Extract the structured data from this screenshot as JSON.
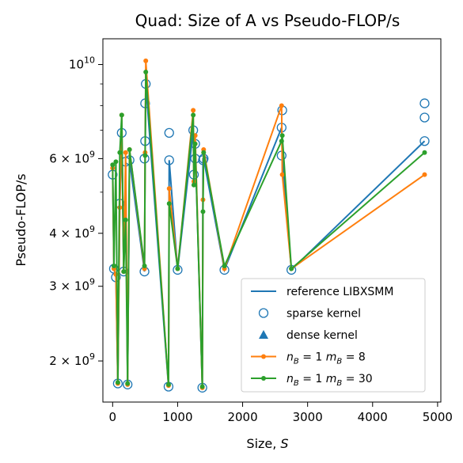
{
  "chart_data": {
    "type": "line",
    "title": "Quad: Size of A vs Pseudo-FLOP/s",
    "xlabel": "Size, S",
    "ylabel": "Pseudo-FLOP/s",
    "xlim": [
      -150,
      5050
    ],
    "ylim": [
      1600000000.0,
      11500000000.0
    ],
    "yscale": "log",
    "grid": false,
    "legend_position": "lower-right",
    "x_ticks": [
      0,
      1000,
      2000,
      3000,
      4000,
      5000
    ],
    "x_tick_labels": [
      "0",
      "1000",
      "2000",
      "3000",
      "4000",
      "5000"
    ],
    "y_ticks": [
      {
        "value": 2000000000.0,
        "mantissa": "2",
        "exponent": "9"
      },
      {
        "value": 3000000000.0,
        "mantissa": "3",
        "exponent": "9"
      },
      {
        "value": 4000000000.0,
        "mantissa": "4",
        "exponent": "9"
      },
      {
        "value": 6000000000.0,
        "mantissa": "6",
        "exponent": "9"
      },
      {
        "value": 10000000000.0,
        "mantissa": "",
        "exponent": "10"
      }
    ],
    "y_minor_ticks": [
      5000000000.0,
      7000000000.0,
      8000000000.0,
      9000000000.0
    ],
    "legend": [
      {
        "label": "reference LIBXSMM",
        "kind": "line",
        "color": "#1f77b4"
      },
      {
        "label": "sparse kernel",
        "kind": "circle",
        "color": "#1f77b4"
      },
      {
        "label": "dense kernel",
        "kind": "triangle",
        "color": "#1f77b4"
      },
      {
        "label_main": "n",
        "label_sub1": "B",
        "label_mid": " = 1 m",
        "label_sub2": "B",
        "label_end": " = 8",
        "kind": "line-dot",
        "color": "#ff7f0e"
      },
      {
        "label_main": "n",
        "label_sub1": "B",
        "label_mid": " = 1 m",
        "label_sub2": "B",
        "label_end": " = 30",
        "kind": "line-dot",
        "color": "#2ca02c"
      }
    ],
    "series": [
      {
        "name": "reference LIBXSMM",
        "color": "#1f77b4",
        "x": [
          0,
          20,
          50,
          80,
          110,
          140,
          170,
          200,
          230,
          260,
          490,
          500,
          510,
          860,
          870,
          1000,
          1240,
          1250,
          1270,
          1380,
          1390,
          1400,
          1720,
          2600,
          2610,
          2750,
          4800
        ],
        "y": [
          5500000000.0,
          3300000000.0,
          3150000000.0,
          1770000000.0,
          4700000000.0,
          6900000000.0,
          3250000000.0,
          5900000000.0,
          1760000000.0,
          5950000000.0,
          3250000000.0,
          6000000000.0,
          9000000000.0,
          1740000000.0,
          5950000000.0,
          3280000000.0,
          7000000000.0,
          5500000000.0,
          6500000000.0,
          1730000000.0,
          6000000000.0,
          6000000000.0,
          3280000000.0,
          7100000000.0,
          6100000000.0,
          3280000000.0,
          6600000000.0
        ]
      },
      {
        "name": "sparse kernel",
        "color": "#1f77b4",
        "x": [
          0,
          20,
          50,
          80,
          110,
          140,
          170,
          200,
          230,
          260,
          490,
          490,
          500,
          500,
          510,
          860,
          870,
          870,
          1000,
          1240,
          1250,
          1270,
          1270,
          1380,
          1390,
          1400,
          1720,
          2600,
          2600,
          2610,
          2750,
          4800,
          4800,
          4800
        ],
        "y": [
          5500000000.0,
          3300000000.0,
          3150000000.0,
          1770000000.0,
          4700000000.0,
          6900000000.0,
          3250000000.0,
          5900000000.0,
          1760000000.0,
          5950000000.0,
          3250000000.0,
          6000000000.0,
          6600000000.0,
          8100000000.0,
          9000000000.0,
          1740000000.0,
          5950000000.0,
          6900000000.0,
          3280000000.0,
          7000000000.0,
          5500000000.0,
          6000000000.0,
          6500000000.0,
          1730000000.0,
          5950000000.0,
          6000000000.0,
          3280000000.0,
          6100000000.0,
          7100000000.0,
          7800000000.0,
          3280000000.0,
          6600000000.0,
          7500000000.0,
          8100000000.0
        ]
      },
      {
        "name": "n_B = 1 m_B = 8",
        "color": "#ff7f0e",
        "x": [
          0,
          20,
          50,
          80,
          110,
          140,
          170,
          200,
          230,
          260,
          490,
          500,
          510,
          860,
          870,
          1000,
          1240,
          1250,
          1270,
          1380,
          1390,
          1400,
          1720,
          2600,
          2610,
          2750,
          4800
        ],
        "y": [
          5700000000.0,
          3300000000.0,
          3200000000.0,
          1770000000.0,
          4600000000.0,
          7600000000.0,
          3250000000.0,
          6200000000.0,
          1760000000.0,
          6300000000.0,
          3300000000.0,
          6200000000.0,
          10200000000.0,
          1750000000.0,
          5100000000.0,
          3300000000.0,
          7800000000.0,
          5300000000.0,
          6800000000.0,
          1730000000.0,
          4800000000.0,
          6300000000.0,
          3300000000.0,
          8000000000.0,
          5500000000.0,
          3300000000.0,
          5500000000.0
        ]
      },
      {
        "name": "n_B = 1 m_B = 30",
        "color": "#2ca02c",
        "x": [
          0,
          20,
          50,
          80,
          110,
          140,
          170,
          200,
          230,
          260,
          490,
          500,
          510,
          860,
          870,
          1000,
          1240,
          1250,
          1270,
          1380,
          1390,
          1400,
          1720,
          2600,
          2610,
          2750,
          4800
        ],
        "y": [
          5800000000.0,
          3350000000.0,
          5900000000.0,
          1780000000.0,
          6200000000.0,
          7600000000.0,
          3250000000.0,
          4300000000.0,
          1770000000.0,
          6300000000.0,
          3350000000.0,
          6100000000.0,
          9600000000.0,
          1760000000.0,
          4700000000.0,
          3300000000.0,
          7600000000.0,
          5200000000.0,
          6500000000.0,
          1740000000.0,
          4500000000.0,
          6200000000.0,
          3350000000.0,
          6600000000.0,
          6800000000.0,
          3300000000.0,
          6200000000.0
        ]
      }
    ]
  }
}
